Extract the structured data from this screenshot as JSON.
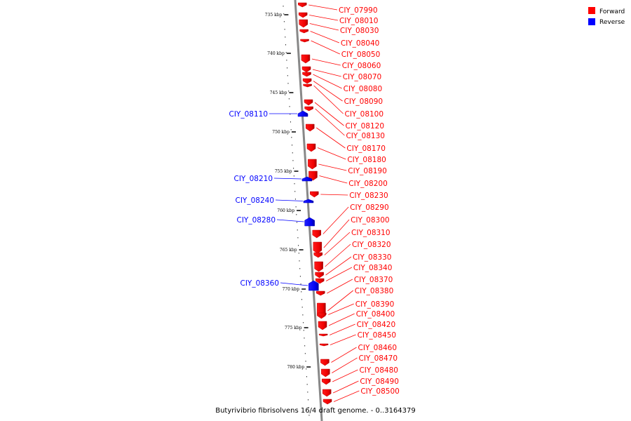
{
  "caption": "Butyrivibrio fibrisolvens 16/4 draft genome. - 0..3164379",
  "legend": [
    {
      "label": "Forward",
      "color": "#ff0000"
    },
    {
      "label": "Reverse",
      "color": "#0000ff"
    }
  ],
  "axis": {
    "ticks": [
      "735 kbp",
      "740 kbp",
      "745 kbp",
      "750 kbp",
      "755 kbp",
      "760 kbp",
      "765 kbp",
      "770 kbp",
      "775 kbp",
      "780 kbp"
    ]
  },
  "forward_genes": [
    "CIY_07990",
    "CIY_08010",
    "CIY_08030",
    "CIY_08040",
    "CIY_08050",
    "CIY_08060",
    "CIY_08070",
    "CIY_08080",
    "CIY_08090",
    "CIY_08100",
    "CIY_08120",
    "CIY_08130",
    "CIY_08170",
    "CIY_08180",
    "CIY_08190",
    "CIY_08200",
    "CIY_08230",
    "CIY_08290",
    "CIY_08300",
    "CIY_08310",
    "CIY_08320",
    "CIY_08330",
    "CIY_08340",
    "CIY_08370",
    "CIY_08380",
    "CIY_08390",
    "CIY_08400",
    "CIY_08420",
    "CIY_08450",
    "CIY_08460",
    "CIY_08470",
    "CIY_08480",
    "CIY_08490",
    "CIY_08500"
  ],
  "reverse_genes": [
    "CIY_08110",
    "CIY_08210",
    "CIY_08240",
    "CIY_08280",
    "CIY_08360"
  ]
}
